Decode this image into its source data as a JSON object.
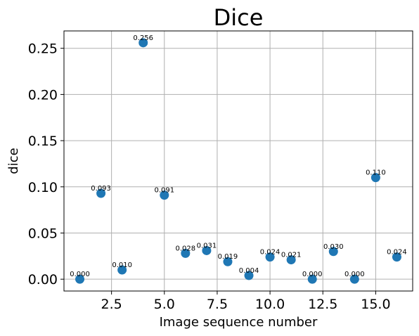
{
  "chart_data": {
    "type": "scatter",
    "title": "Dice",
    "xlabel": "Image sequence number",
    "ylabel": "dice",
    "xlim": [
      0.25,
      16.75
    ],
    "ylim": [
      -0.0128,
      0.2688
    ],
    "grid": true,
    "xticks": [
      2.5,
      5.0,
      7.5,
      10.0,
      12.5,
      15.0
    ],
    "xtick_labels": [
      "2.5",
      "5.0",
      "7.5",
      "10.0",
      "12.5",
      "15.0"
    ],
    "yticks": [
      0.0,
      0.05,
      0.1,
      0.15,
      0.2,
      0.25
    ],
    "ytick_labels": [
      "0.00",
      "0.05",
      "0.10",
      "0.15",
      "0.20",
      "0.25"
    ],
    "marker_color": "#1f77b4",
    "x": [
      1,
      2,
      3,
      4,
      5,
      6,
      7,
      8,
      9,
      10,
      11,
      12,
      13,
      14,
      15,
      16
    ],
    "y": [
      0.0,
      0.093,
      0.01,
      0.256,
      0.091,
      0.028,
      0.031,
      0.019,
      0.004,
      0.024,
      0.021,
      0.0,
      0.03,
      0.0,
      0.11,
      0.024
    ],
    "data_labels": [
      "0.000",
      "0.093",
      "0.010",
      "0.256",
      "0.091",
      "0.028",
      "0.031",
      "0.019",
      "0.004",
      "0.024",
      "0.021",
      "0.000",
      "0.030",
      "0.000",
      "0.110",
      "0.024"
    ]
  }
}
